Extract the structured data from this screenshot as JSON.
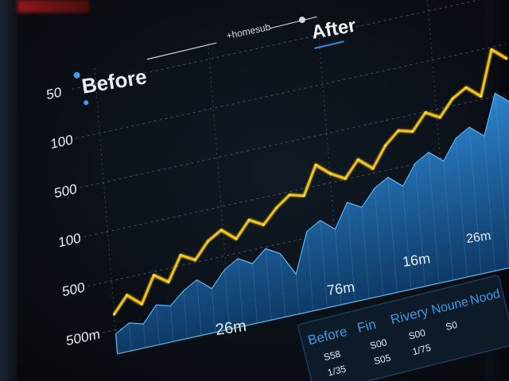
{
  "header": {
    "subtitle": "+homesub",
    "after_label": "After",
    "before_label": "Before"
  },
  "axis": {
    "y_ticks": [
      "50",
      "100",
      "500",
      "100",
      "500",
      "500m"
    ],
    "x_ticks": [
      "26m",
      "76m",
      "16m",
      "26m"
    ]
  },
  "table": {
    "headers": [
      "Before",
      "Fin",
      "Rivery",
      "Noune",
      "Nood"
    ],
    "rows": [
      [
        "S58",
        "S00",
        "S00",
        "S0"
      ],
      [
        "1/35",
        "S05",
        "1/75"
      ]
    ]
  },
  "colors": {
    "accent_blue": "#2f8fde",
    "line_yellow": "#f2c21a",
    "grid": "#8fa3b8"
  },
  "chart_data": {
    "type": "line",
    "series": [
      {
        "values": [
          20,
          28,
          22,
          35,
          30,
          42,
          38,
          46,
          50,
          44,
          52,
          48,
          55,
          60,
          58,
          72,
          66,
          62,
          70,
          64,
          74,
          80,
          78,
          86,
          82,
          90,
          94,
          88,
          110,
          104
        ]
      },
      {
        "values": [
          10,
          14,
          12,
          20,
          18,
          24,
          28,
          22,
          30,
          34,
          30,
          36,
          32,
          20,
          40,
          44,
          38,
          50,
          46,
          54,
          58,
          52,
          62,
          66,
          60,
          70,
          74,
          68,
          88,
          82
        ]
      }
    ]
  }
}
